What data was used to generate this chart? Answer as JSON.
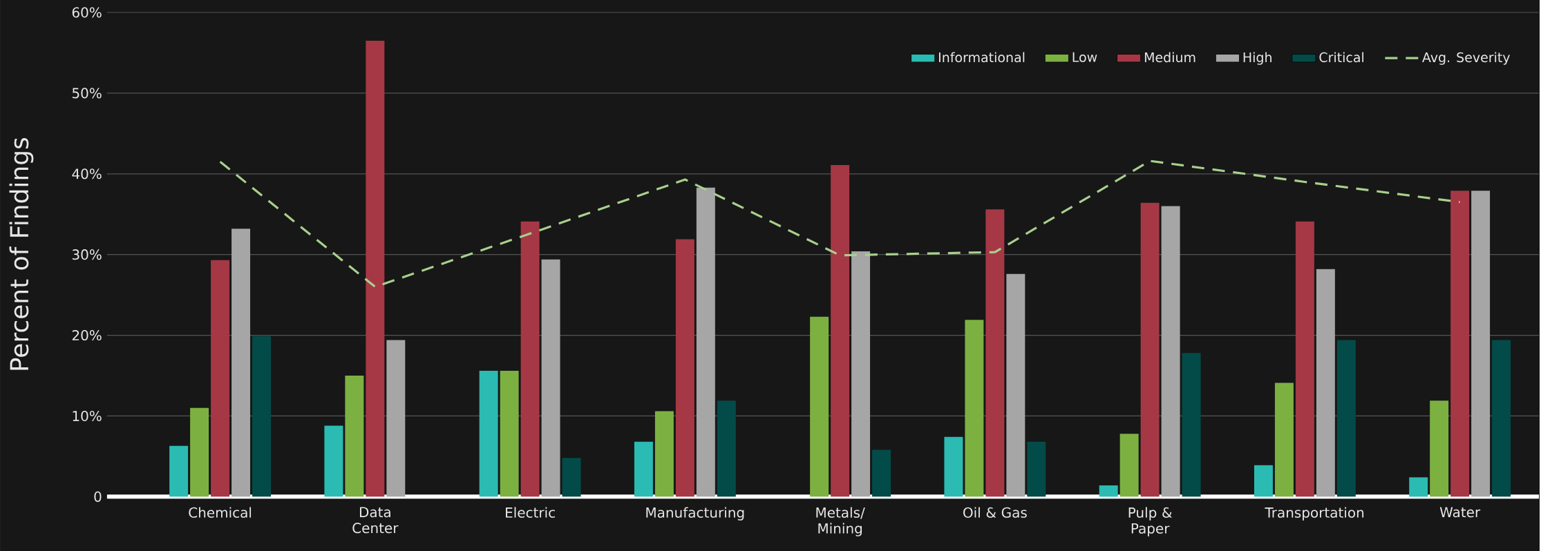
{
  "chart_data": {
    "type": "bar",
    "ylabel": "Percent of Findings",
    "categories": [
      "Chemical",
      "Data Center",
      "Electric",
      "Manufacturing",
      "Metals/ Mining",
      "Oil & Gas",
      "Pulp & Paper",
      "Transportation",
      "Water"
    ],
    "series": [
      {
        "name": "Informational",
        "color": "#2bbbb3",
        "values": [
          6.3,
          8.8,
          15.6,
          6.8,
          null,
          7.4,
          1.4,
          3.9,
          2.4
        ]
      },
      {
        "name": "Low",
        "color": "#7cb142",
        "values": [
          11,
          15,
          15.6,
          10.6,
          22.3,
          21.9,
          7.8,
          14.1,
          11.9
        ]
      },
      {
        "name": "Medium",
        "color": "#a63845",
        "values": [
          29.3,
          56.5,
          34.1,
          31.9,
          41.1,
          35.6,
          36.4,
          34.1,
          37.9
        ]
      },
      {
        "name": "High",
        "color": "#a6a6a6",
        "values": [
          33.2,
          19.4,
          29.4,
          38.3,
          30.4,
          27.6,
          36,
          28.2,
          37.9
        ]
      },
      {
        "name": "Critical",
        "color": "#034b48",
        "values": [
          19.9,
          null,
          4.8,
          11.9,
          5.8,
          6.8,
          17.8,
          19.4,
          19.4
        ]
      },
      {
        "name": "Avg. Severity",
        "type": "line",
        "line_style": "dashed",
        "color": "#a8d08d",
        "values": [
          41.5,
          26,
          32.6,
          39.3,
          29.9,
          30.3,
          41.6,
          39,
          36.5
        ]
      }
    ],
    "ylim": [
      0,
      60
    ],
    "yticks": [
      0,
      {
        "value": 10,
        "label": "10%"
      },
      {
        "value": 20,
        "label": "20%"
      },
      {
        "value": 30,
        "label": "30%"
      },
      {
        "value": 40,
        "label": "40%"
      },
      {
        "value": 50,
        "label": "50%"
      },
      {
        "value": 60,
        "label": "60%"
      }
    ],
    "grid": "y",
    "legend": "top right"
  }
}
